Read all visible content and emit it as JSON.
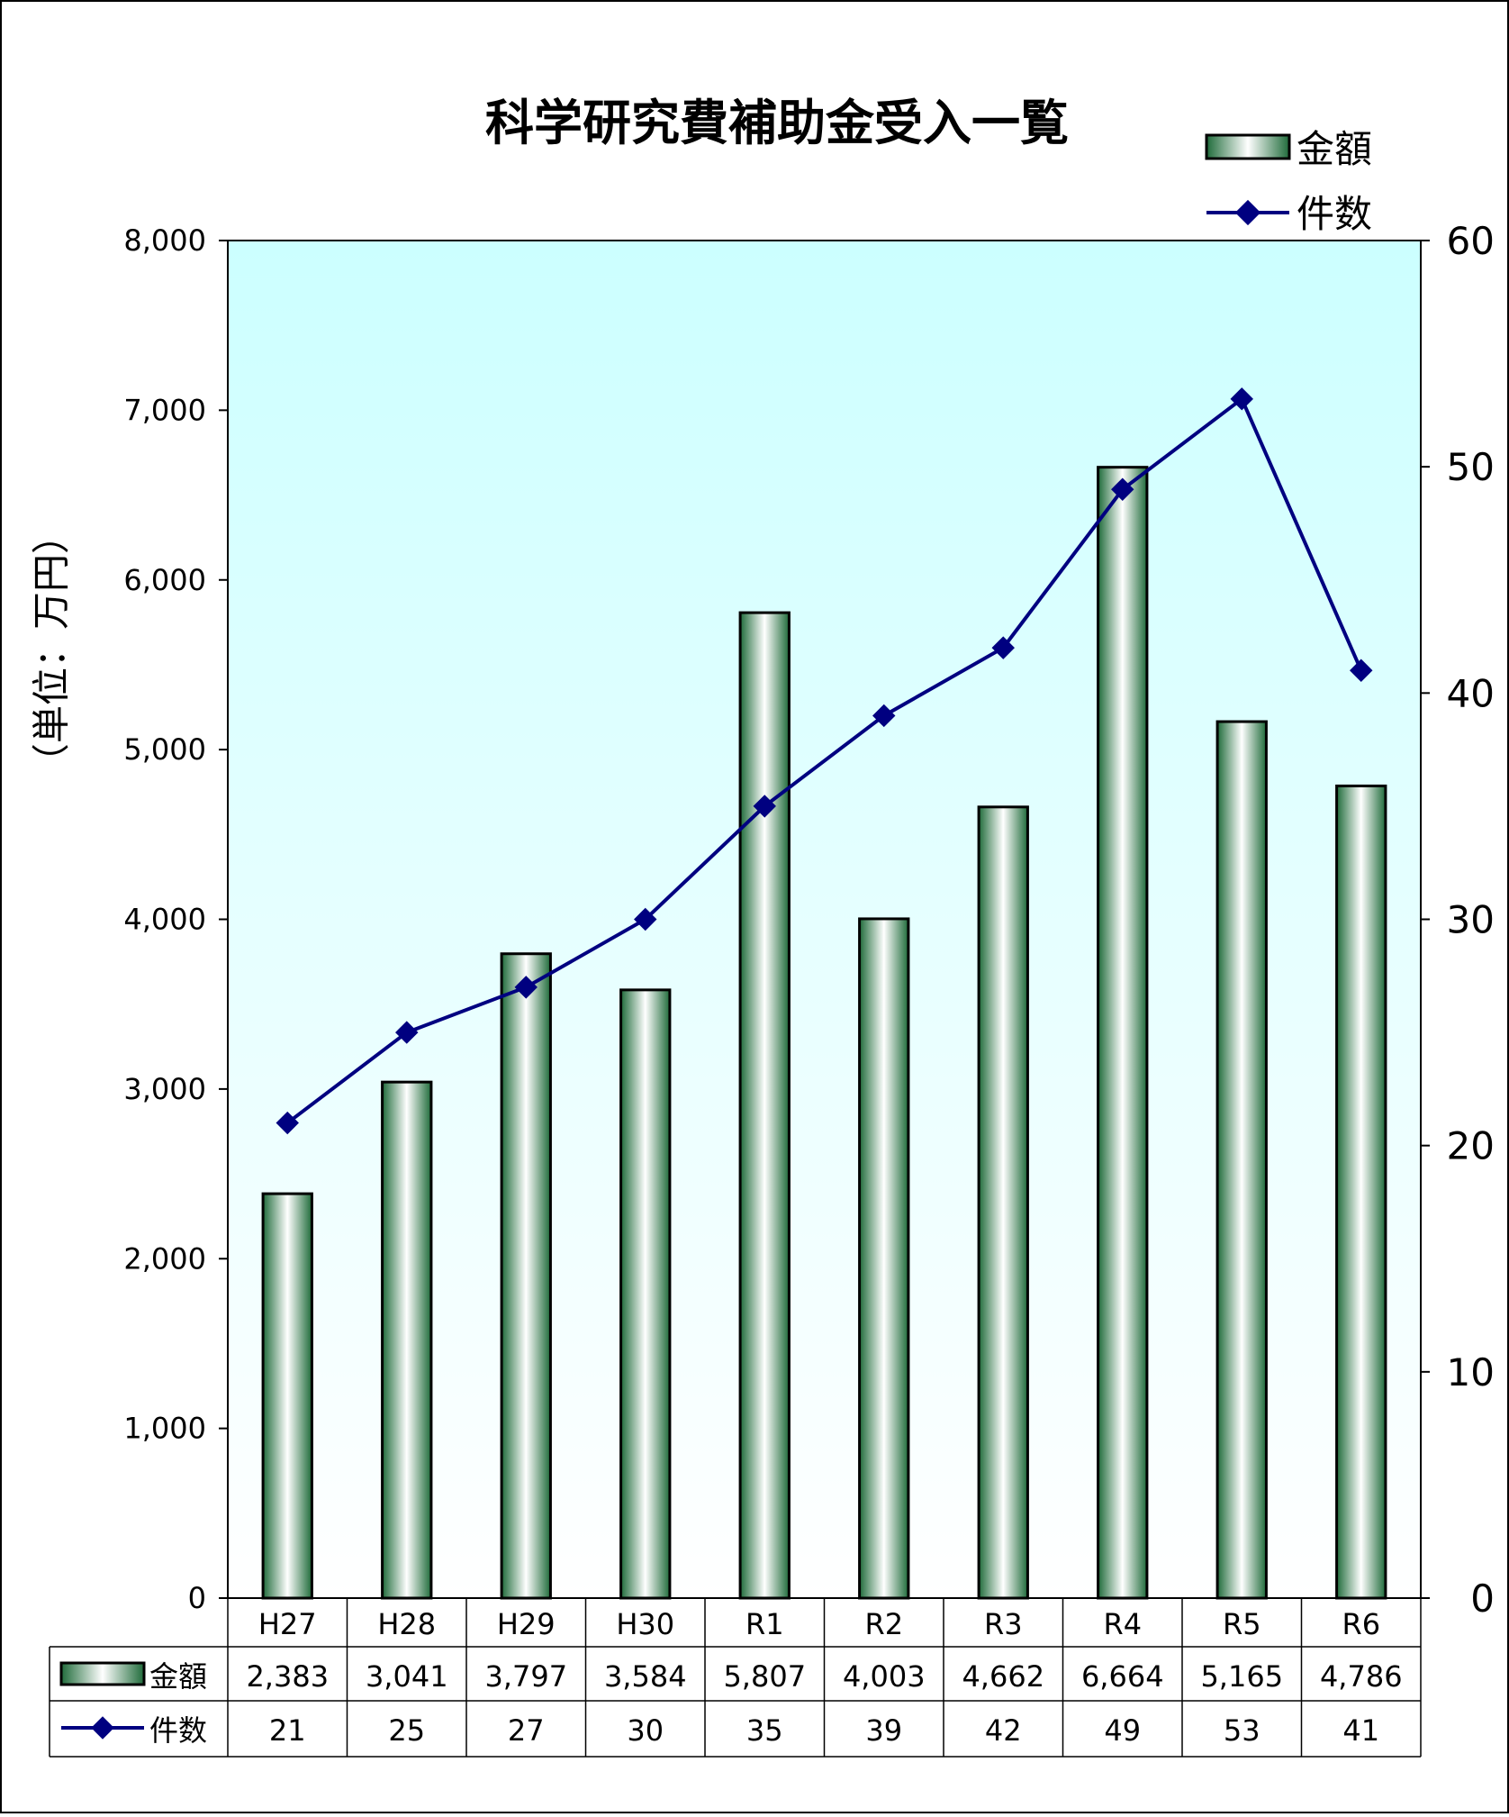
{
  "chart_data": {
    "type": "bar",
    "title": "科学研究費補助金受入一覧",
    "ylabel": "（単位：万円）",
    "categories": [
      "H27",
      "H28",
      "H29",
      "H30",
      "R1",
      "R2",
      "R3",
      "R4",
      "R5",
      "R6"
    ],
    "series": [
      {
        "name": "金額",
        "type": "bar",
        "axis": "left",
        "values": [
          2383,
          3041,
          3797,
          3584,
          5807,
          4003,
          4662,
          6664,
          5165,
          4786
        ],
        "labels": [
          "2,383",
          "3,041",
          "3,797",
          "3,584",
          "5,807",
          "4,003",
          "4,662",
          "6,664",
          "5,165",
          "4,786"
        ]
      },
      {
        "name": "件数",
        "type": "line",
        "axis": "right",
        "values": [
          21,
          25,
          27,
          30,
          35,
          39,
          42,
          49,
          53,
          41
        ],
        "labels": [
          "21",
          "25",
          "27",
          "30",
          "35",
          "39",
          "42",
          "49",
          "53",
          "41"
        ]
      }
    ],
    "ylim": [
      0,
      8000
    ],
    "y2lim": [
      0,
      60
    ],
    "yticks": [
      "0",
      "1,000",
      "2,000",
      "3,000",
      "4,000",
      "5,000",
      "6,000",
      "7,000",
      "8,000"
    ],
    "y2ticks": [
      "0",
      "10",
      "20",
      "30",
      "40",
      "50",
      "60"
    ],
    "legend_position": "top-right",
    "data_table": true,
    "colors": {
      "plot_bg_top": "#ccffff",
      "plot_bg_bottom": "#ffffff",
      "bar_dark": "#1f6b3a",
      "bar_light": "#ffffff",
      "line": "#000080"
    }
  }
}
